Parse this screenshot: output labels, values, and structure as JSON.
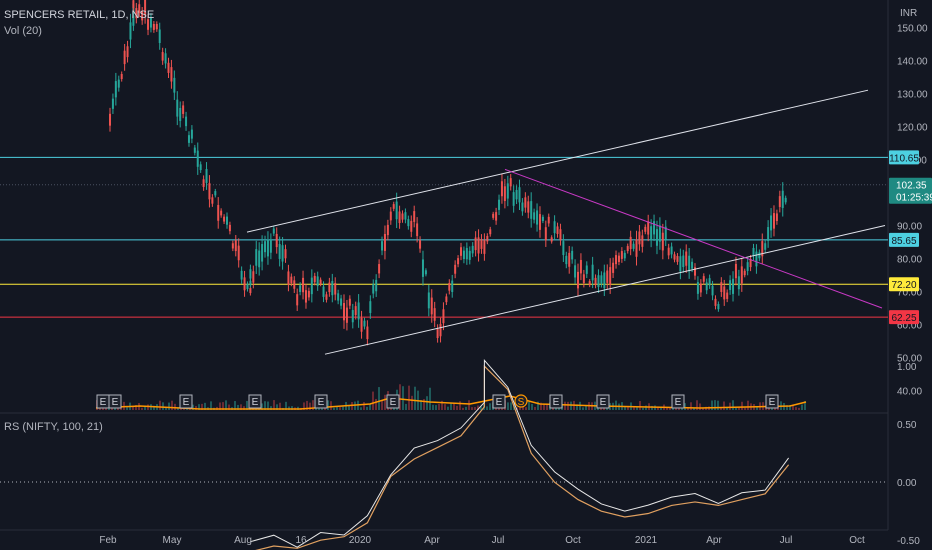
{
  "header": {
    "title": "SPENCERS RETAIL, 1D, NSE",
    "volume_label": "Vol (20)",
    "currency": "INR"
  },
  "rs_header": "RS (NIFTY, 100, 21)",
  "colors": {
    "bg": "#131722",
    "up": "#26a69a",
    "down": "#ef5350",
    "cyan": "#4dd0e1",
    "yellow": "#ffeb3b",
    "red": "#f23645",
    "magenta": "#c839c5",
    "orange": "#ff9800",
    "ma": "#e0a060"
  },
  "chart_data": [
    {
      "type": "candlestick",
      "title": "SPENCERS RETAIL, 1D, NSE",
      "x_ticks": [
        "Feb",
        "May",
        "Aug",
        "16",
        "2020",
        "Apr",
        "Jul",
        "Oct",
        "2021",
        "Apr",
        "Jul",
        "Oct"
      ],
      "y_ticks": [
        40,
        50,
        60,
        70,
        80,
        90,
        100,
        110,
        120,
        130,
        140,
        150
      ],
      "ylim": [
        38,
        163
      ],
      "price_series": [
        [
          "Feb 2019",
          122
        ],
        [
          "Mar 2019",
          150
        ],
        [
          "Mar 2019",
          158
        ],
        [
          "Apr 2019",
          150
        ],
        [
          "May 2019",
          125
        ],
        [
          "Jun 2019",
          105
        ],
        [
          "Jul 2019",
          90
        ],
        [
          "Aug 2019",
          68
        ],
        [
          "Aug 2019",
          75
        ],
        [
          "Sep 2019",
          88
        ],
        [
          "Oct 2019",
          70
        ],
        [
          "Nov 2019",
          72
        ],
        [
          "Dec 2019",
          66
        ],
        [
          "Jan 2020",
          60
        ],
        [
          "Feb 2020",
          95
        ],
        [
          "Mar 2020",
          90
        ],
        [
          "Apr 2020",
          58
        ],
        [
          "May 2020",
          80
        ],
        [
          "Jun 2020",
          85
        ],
        [
          "Jul 2020",
          103
        ],
        [
          "Aug 2020",
          92
        ],
        [
          "Sep 2020",
          88
        ],
        [
          "Oct 2020",
          76
        ],
        [
          "Nov 2020",
          74
        ],
        [
          "Dec 2020",
          80
        ],
        [
          "Jan 2021",
          90
        ],
        [
          "Feb 2021",
          84
        ],
        [
          "Mar 2021",
          74
        ],
        [
          "Apr 2021",
          68
        ],
        [
          "May 2021",
          76
        ],
        [
          "Jun 2021",
          84
        ],
        [
          "Jul 2021",
          102.35
        ]
      ],
      "horizontal_levels": [
        {
          "value": 110.65,
          "label": "110.65",
          "color": "#4dd0e1"
        },
        {
          "value": 85.65,
          "label": "85.65",
          "color": "#4dd0e1"
        },
        {
          "value": 72.2,
          "label": "72.20",
          "color": "#ffeb3b"
        },
        {
          "value": 62.25,
          "label": "62.25",
          "color": "#f23645"
        }
      ],
      "last_price": {
        "value": 102.35,
        "label": "102.35",
        "countdown": "01:25:39"
      },
      "earnings_markers": [
        "E",
        "E",
        "E",
        "E",
        "E",
        "E",
        "E",
        "E",
        "E",
        "E",
        "E",
        "E"
      ],
      "split_marker": "S"
    },
    {
      "type": "line",
      "title": "RS (NIFTY, 100, 21)",
      "y_ticks": [
        "1.00",
        "0.50",
        "0.00",
        "-0.50"
      ],
      "ylim": [
        -0.65,
        1.1
      ],
      "rs_series": [
        [
          "Aug 2019",
          -0.55
        ],
        [
          "Sep 2019",
          -0.5
        ],
        [
          "Oct 2019",
          -0.52
        ],
        [
          "Nov 2019",
          -0.45
        ],
        [
          "Dec 2019",
          -0.42
        ],
        [
          "Jan 2020",
          -0.3
        ],
        [
          "Feb 2020",
          0.1
        ],
        [
          "Mar 2020",
          0.25
        ],
        [
          "Apr 2020",
          0.35
        ],
        [
          "May 2020",
          0.45
        ],
        [
          "Jun 2020",
          0.7
        ],
        [
          "Jun 2020",
          1.05
        ],
        [
          "Jul 2020",
          0.85
        ],
        [
          "Aug 2020",
          0.3
        ],
        [
          "Sep 2020",
          0.05
        ],
        [
          "Oct 2020",
          -0.1
        ],
        [
          "Nov 2020",
          -0.2
        ],
        [
          "Dec 2020",
          -0.25
        ],
        [
          "Jan 2021",
          -0.22
        ],
        [
          "Feb 2021",
          -0.15
        ],
        [
          "Mar 2021",
          -0.12
        ],
        [
          "Apr 2021",
          -0.15
        ],
        [
          "May 2021",
          -0.1
        ],
        [
          "Jun 2021",
          -0.05
        ],
        [
          "Jul 2021",
          0.2
        ]
      ]
    }
  ]
}
